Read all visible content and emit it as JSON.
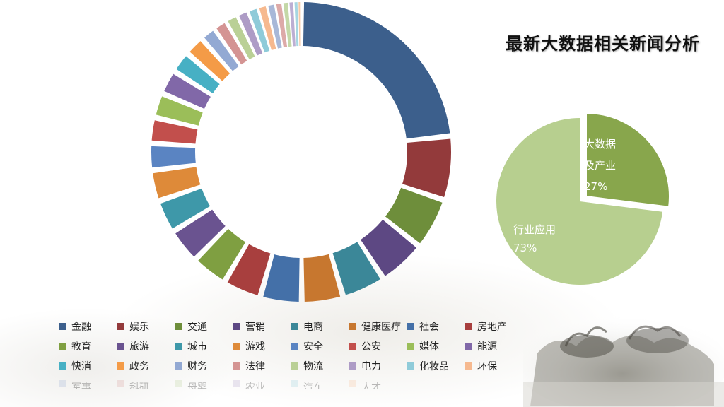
{
  "page_title": "最新大数据相关新闻分析",
  "chart_data": [
    {
      "type": "pie",
      "variant": "donut",
      "title": "",
      "categories": [
        "金融",
        "娱乐",
        "交通",
        "营销",
        "电商",
        "健康医疗",
        "社会",
        "房地产",
        "教育",
        "旅游",
        "城市",
        "游戏",
        "安全",
        "公安",
        "媒体",
        "能源",
        "快消",
        "政务",
        "财务",
        "法律",
        "物流",
        "电力",
        "化妆品",
        "环保",
        "军事",
        "科研",
        "母婴",
        "农业",
        "汽车",
        "人才"
      ],
      "values": [
        21.0,
        6.2,
        5.0,
        4.6,
        4.2,
        4.0,
        4.0,
        3.7,
        3.5,
        3.4,
        3.2,
        3.0,
        2.6,
        2.5,
        2.4,
        2.4,
        2.1,
        2.0,
        1.5,
        1.3,
        1.2,
        1.1,
        1.0,
        0.9,
        0.8,
        0.7,
        0.6,
        0.5,
        0.4,
        0.3
      ],
      "colors": [
        "#3C5F8C",
        "#933A3B",
        "#6E8E3B",
        "#5D4883",
        "#3B8798",
        "#C7772F",
        "#4470A8",
        "#A83F3E",
        "#7F9F41",
        "#6A5390",
        "#3E98A9",
        "#DE8A39",
        "#5A84C2",
        "#C24F4C",
        "#9BBE59",
        "#8168A8",
        "#47B0C4",
        "#F49B47",
        "#93A9D3",
        "#D49493",
        "#BAD096",
        "#AE9CC6",
        "#8FCBD9",
        "#F6B98F",
        "#A8B8D8",
        "#DDAAA8",
        "#C4D8A7",
        "#BCAED3",
        "#A6D6E2",
        "#F7C8A6"
      ],
      "legend": "bottom"
    },
    {
      "type": "pie",
      "title": "",
      "categories": [
        "大数据及产业",
        "行业应用"
      ],
      "values": [
        27,
        73
      ],
      "labels": [
        [
          "大数据",
          "及产业",
          "27%"
        ],
        [
          "行业应用",
          "73%"
        ]
      ],
      "colors": [
        "#88A64C",
        "#B7CF8F"
      ]
    }
  ]
}
